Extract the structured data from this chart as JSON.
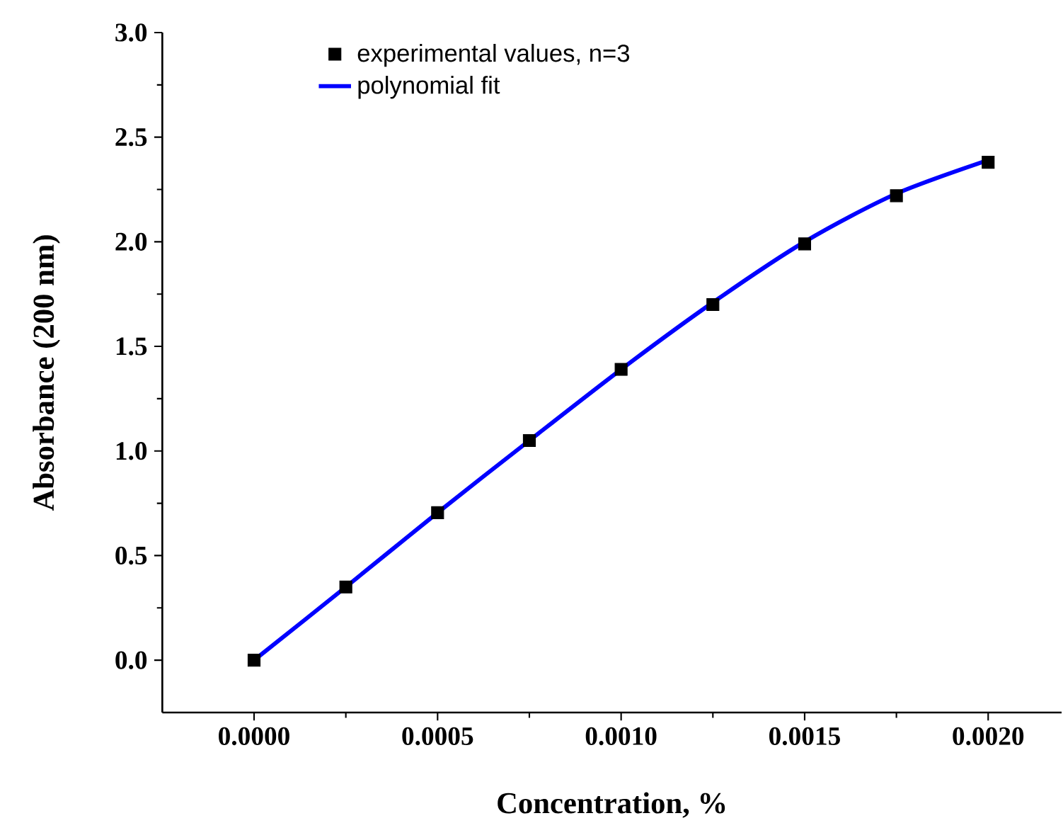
{
  "chart_data": {
    "type": "scatter",
    "xlabel": "Concentration, %",
    "ylabel": "Absorbance (200 nm)",
    "x": [
      0,
      0.00025,
      0.0005,
      0.00075,
      0.001,
      0.00125,
      0.0015,
      0.00175,
      0.002
    ],
    "series": [
      {
        "name": "experimental values, n=3",
        "marker": "square",
        "color": "#000000",
        "values": [
          0,
          0.35,
          0.705,
          1.05,
          1.39,
          1.7,
          1.99,
          2.22,
          2.38
        ]
      },
      {
        "name": "polynomial fit",
        "type": "line",
        "marker": "none",
        "line_style": "solid",
        "color": "#0000ff",
        "values": [
          0,
          0.35,
          0.705,
          1.05,
          1.39,
          1.71,
          2.0,
          2.23,
          2.39
        ]
      }
    ],
    "xlim": [
      -0.00025,
      0.0022
    ],
    "ylim": [
      -0.25,
      3.0
    ],
    "xticks": [
      {
        "value": 0,
        "label": "0.0000"
      },
      {
        "value": 0.0005,
        "label": "0.0005"
      },
      {
        "value": 0.001,
        "label": "0.0010"
      },
      {
        "value": 0.0015,
        "label": "0.0015"
      },
      {
        "value": 0.002,
        "label": "0.0020"
      }
    ],
    "yticks": [
      {
        "value": 0,
        "label": "0.0"
      },
      {
        "value": 0.5,
        "label": "0.5"
      },
      {
        "value": 1,
        "label": "1.0"
      },
      {
        "value": 1.5,
        "label": "1.5"
      },
      {
        "value": 2,
        "label": "2.0"
      },
      {
        "value": 2.5,
        "label": "2.5"
      },
      {
        "value": 3,
        "label": "3.0"
      }
    ],
    "legend": "top left",
    "grid": false
  }
}
